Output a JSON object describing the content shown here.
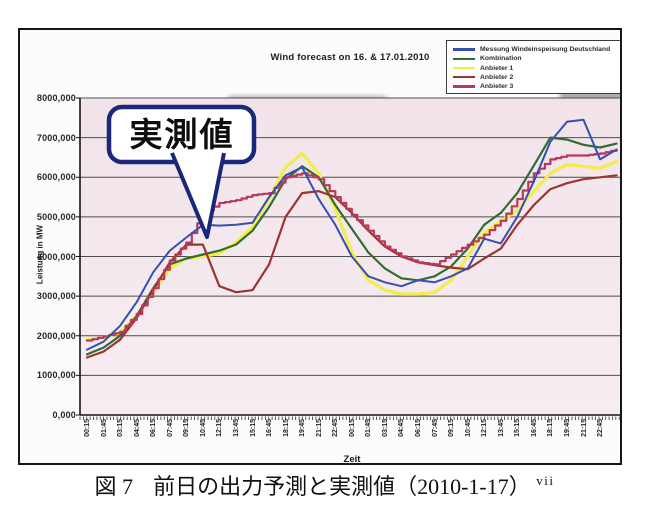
{
  "figure": {
    "callout_label": "実測値",
    "caption": {
      "figure_label": "図 7",
      "text": "前日の出力予測と実測値（2010-1-17）",
      "footnote_marker": "vii"
    },
    "bleedthrough": {
      "note": "faint text showing through from reverse side of the scanned page",
      "fragments": [
        "we guarantee security of suppl",
        "year",
        "ion, including safety- and"
      ]
    }
  },
  "chart_data": {
    "type": "line",
    "title": "Wind forecast on 16. & 17.01.2010",
    "xlabel": "Zeit",
    "ylabel": "Leistung in MW",
    "ylim": [
      0,
      8000
    ],
    "grid": "horizontal",
    "legend_position": "top-right",
    "ytick_labels": [
      "0,000",
      "1000,000",
      "2000,000",
      "3000,000",
      "4000,000",
      "5000,000",
      "6000,000",
      "7000,000",
      "8000,000"
    ],
    "categories": [
      "00:15",
      "01:45",
      "03:15",
      "04:45",
      "06:15",
      "07:45",
      "09:15",
      "10:45",
      "12:15",
      "13:45",
      "15:15",
      "16:45",
      "18:15",
      "19:45",
      "21:15",
      "22:45",
      "00:15",
      "01:45",
      "03:15",
      "04:45",
      "06:15",
      "07:45",
      "09:15",
      "10:45",
      "12:15",
      "13:45",
      "15:15",
      "16:45",
      "18:15",
      "19:45",
      "21:15",
      "22:45"
    ],
    "note": "values in MW at each 1.5h tick over 16.-17.01.2010; 33rd value is the unlabeled curve end at the plot's right edge",
    "series": [
      {
        "name": "Messung Windeinspeisung Deutschland",
        "color": "#3450b0",
        "style": "line",
        "width": 2,
        "values": [
          1650,
          1850,
          2250,
          2850,
          3600,
          4150,
          4480,
          4800,
          4780,
          4800,
          4850,
          5500,
          6050,
          6250,
          5450,
          4800,
          4000,
          3500,
          3350,
          3250,
          3400,
          3350,
          3500,
          3700,
          4450,
          4330,
          5000,
          5900,
          6900,
          7400,
          7450,
          6450,
          6700
        ]
      },
      {
        "name": "Kombination",
        "color": "#2f6d33",
        "style": "line",
        "width": 2.2,
        "values": [
          1530,
          1700,
          2000,
          2500,
          3200,
          3800,
          3950,
          4050,
          4150,
          4300,
          4650,
          5250,
          5950,
          6280,
          6000,
          5300,
          4700,
          4100,
          3700,
          3450,
          3400,
          3500,
          3750,
          4200,
          4800,
          5100,
          5600,
          6300,
          7000,
          6950,
          6820,
          6750,
          6850
        ]
      },
      {
        "name": "Anbieter 1",
        "color": "#f3ec49",
        "style": "line",
        "width": 3.2,
        "values": [
          1900,
          1950,
          2080,
          2500,
          3100,
          3700,
          3950,
          4000,
          4080,
          4350,
          4750,
          5450,
          6250,
          6600,
          6100,
          5200,
          4100,
          3400,
          3150,
          3050,
          3050,
          3100,
          3400,
          4000,
          4600,
          4900,
          5150,
          5650,
          6100,
          6320,
          6280,
          6220,
          6400
        ]
      },
      {
        "name": "Anbieter 2",
        "color": "#9d3431",
        "style": "line",
        "width": 2.2,
        "values": [
          1450,
          1600,
          1900,
          2450,
          3150,
          3850,
          4300,
          4300,
          3250,
          3100,
          3150,
          3800,
          5000,
          5600,
          5650,
          5500,
          5100,
          4650,
          4250,
          4000,
          3850,
          3780,
          3720,
          3680,
          3950,
          4200,
          4800,
          5300,
          5700,
          5850,
          5950,
          6000,
          6050
        ]
      },
      {
        "name": "Anbieter 3",
        "color": "#b8395c",
        "style": "steps",
        "width": 2.2,
        "values": [
          1880,
          1980,
          2100,
          2550,
          3200,
          3900,
          4350,
          5080,
          5350,
          5420,
          5550,
          5600,
          6000,
          6100,
          5950,
          5500,
          5050,
          4650,
          4250,
          4000,
          3850,
          3800,
          4050,
          4300,
          4550,
          4900,
          5450,
          6100,
          6450,
          6550,
          6550,
          6600,
          6700
        ]
      }
    ]
  }
}
